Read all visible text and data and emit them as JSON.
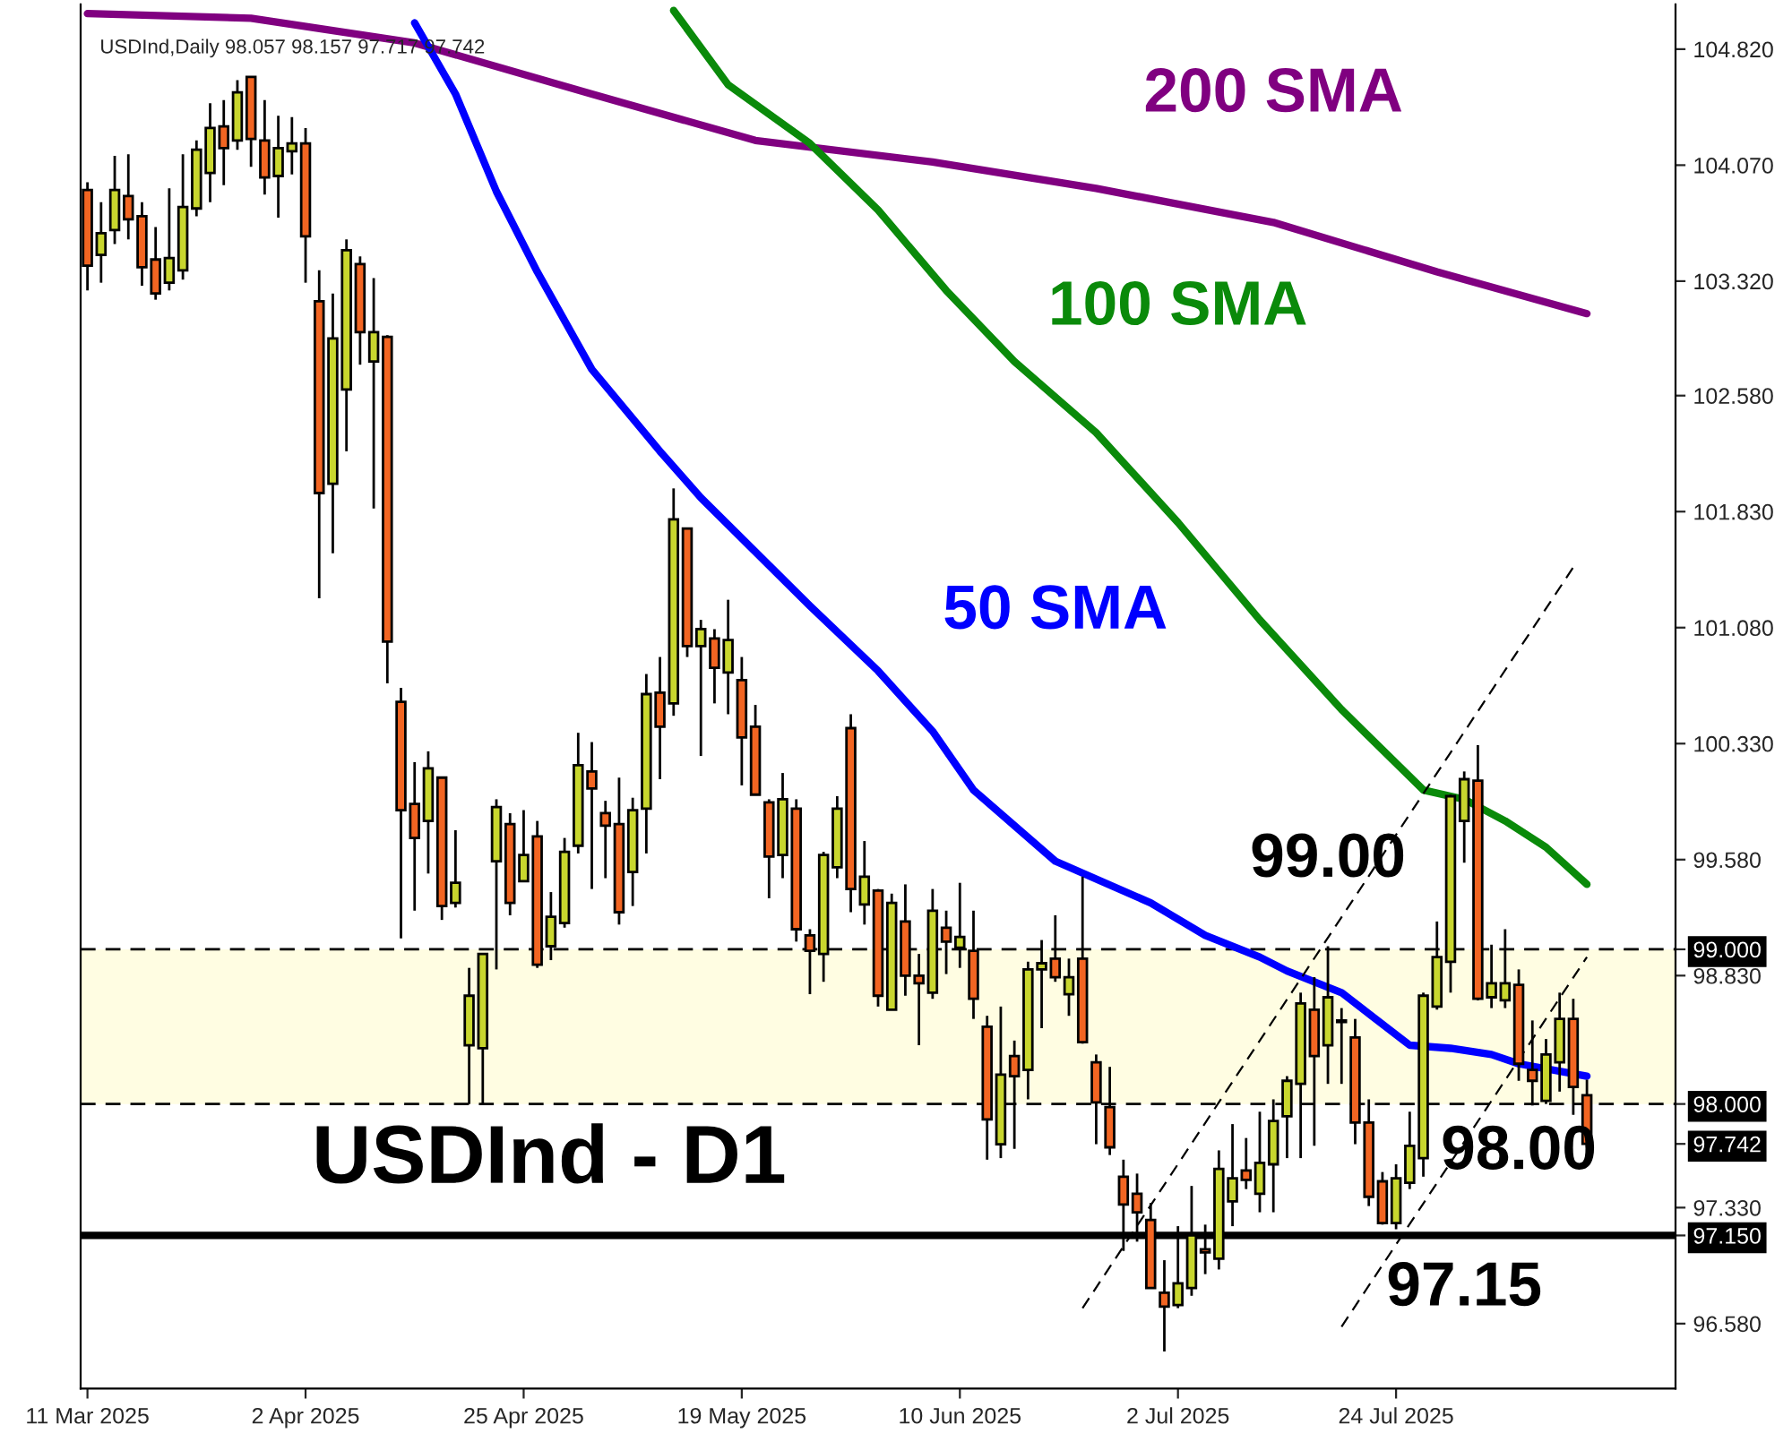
{
  "chart_data": {
    "type": "candlestick",
    "title": "USDInd - D1",
    "annotations": [
      "USDInd,Daily 98.057 98.157 97.717 97.742"
    ],
    "categories": [
      "11 Mar 2025",
      null,
      null,
      null,
      null,
      null,
      null,
      null,
      null,
      null,
      null,
      null,
      null,
      null,
      null,
      null,
      "2 Apr 2025",
      null,
      null,
      null,
      null,
      null,
      null,
      null,
      null,
      null,
      null,
      null,
      null,
      null,
      null,
      null,
      "25 Apr 2025",
      null,
      null,
      null,
      null,
      null,
      null,
      null,
      null,
      null,
      null,
      null,
      null,
      null,
      null,
      null,
      "19 May 2025",
      null,
      null,
      null,
      null,
      null,
      null,
      null,
      null,
      null,
      null,
      null,
      null,
      null,
      null,
      null,
      "10 Jun 2025",
      null,
      null,
      null,
      null,
      null,
      null,
      null,
      null,
      null,
      null,
      null,
      null,
      null,
      null,
      null,
      "2 Jul 2025",
      null,
      null,
      null,
      null,
      null,
      null,
      null,
      null,
      null,
      null,
      null,
      null,
      null,
      null,
      null,
      "24 Jul 2025",
      null,
      null,
      null,
      null,
      null,
      null,
      null,
      null,
      null,
      null,
      null,
      null,
      null,
      null
    ],
    "ohlc": [
      [
        103.91,
        103.96,
        103.26,
        103.42
      ],
      [
        103.49,
        103.83,
        103.31,
        103.63
      ],
      [
        103.65,
        104.13,
        103.56,
        103.91
      ],
      [
        103.87,
        104.14,
        103.59,
        103.72
      ],
      [
        103.74,
        103.83,
        103.29,
        103.41
      ],
      [
        103.46,
        103.67,
        103.2,
        103.24
      ],
      [
        103.31,
        103.92,
        103.26,
        103.47
      ],
      [
        103.39,
        104.14,
        103.33,
        103.8
      ],
      [
        103.79,
        104.23,
        103.74,
        104.17
      ],
      [
        104.02,
        104.47,
        103.83,
        104.31
      ],
      [
        104.32,
        104.49,
        103.94,
        104.18
      ],
      [
        104.23,
        104.62,
        104.17,
        104.54
      ],
      [
        104.64,
        104.64,
        104.06,
        104.24
      ],
      [
        104.23,
        104.49,
        103.88,
        103.99
      ],
      [
        104.0,
        104.39,
        103.73,
        104.18
      ],
      [
        104.16,
        104.38,
        104.01,
        104.21
      ],
      [
        104.21,
        104.31,
        103.31,
        103.61
      ],
      [
        103.19,
        103.39,
        101.27,
        101.95
      ],
      [
        102.01,
        103.24,
        101.56,
        102.95
      ],
      [
        102.62,
        103.59,
        102.22,
        103.52
      ],
      [
        103.43,
        103.48,
        102.78,
        102.99
      ],
      [
        102.8,
        103.34,
        101.85,
        102.99
      ],
      [
        102.96,
        102.97,
        100.72,
        100.99
      ],
      [
        100.6,
        100.69,
        99.07,
        99.9
      ],
      [
        99.94,
        100.21,
        99.25,
        99.72
      ],
      [
        99.83,
        100.28,
        99.49,
        100.17
      ],
      [
        100.11,
        100.11,
        99.19,
        99.28
      ],
      [
        99.3,
        99.77,
        99.27,
        99.43
      ],
      [
        98.38,
        98.88,
        98.0,
        98.7
      ],
      [
        98.36,
        98.97,
        98.0,
        98.97
      ],
      [
        99.57,
        99.97,
        98.87,
        99.92
      ],
      [
        99.81,
        99.88,
        99.22,
        99.3
      ],
      [
        99.44,
        99.9,
        99.44,
        99.61
      ],
      [
        99.73,
        99.83,
        98.88,
        98.9
      ],
      [
        99.02,
        99.37,
        98.93,
        99.21
      ],
      [
        99.17,
        99.72,
        99.14,
        99.63
      ],
      [
        99.67,
        100.4,
        99.62,
        100.19
      ],
      [
        100.15,
        100.34,
        99.39,
        100.04
      ],
      [
        99.88,
        99.96,
        99.46,
        99.8
      ],
      [
        99.81,
        100.11,
        99.16,
        99.24
      ],
      [
        99.5,
        99.98,
        99.28,
        99.9
      ],
      [
        99.91,
        100.78,
        99.62,
        100.65
      ],
      [
        100.66,
        100.89,
        100.1,
        100.44
      ],
      [
        100.59,
        101.98,
        100.51,
        101.78
      ],
      [
        101.72,
        101.72,
        100.89,
        100.96
      ],
      [
        100.96,
        101.13,
        100.25,
        101.07
      ],
      [
        101.01,
        101.07,
        100.59,
        100.82
      ],
      [
        100.79,
        101.26,
        100.52,
        101.0
      ],
      [
        100.74,
        100.89,
        100.06,
        100.37
      ],
      [
        100.44,
        100.58,
        100.0,
        100.0
      ],
      [
        99.95,
        99.97,
        99.33,
        99.6
      ],
      [
        99.61,
        100.14,
        99.46,
        99.97
      ],
      [
        99.91,
        99.97,
        99.05,
        99.13
      ],
      [
        99.09,
        99.13,
        98.71,
        98.99
      ],
      [
        98.97,
        99.63,
        98.79,
        99.61
      ],
      [
        99.53,
        99.99,
        99.46,
        99.91
      ],
      [
        100.43,
        100.52,
        99.24,
        99.39
      ],
      [
        99.29,
        99.7,
        99.16,
        99.47
      ],
      [
        99.38,
        99.39,
        98.63,
        98.7
      ],
      [
        98.61,
        99.36,
        98.61,
        99.3
      ],
      [
        99.18,
        99.42,
        98.7,
        98.83
      ],
      [
        98.83,
        98.97,
        98.38,
        98.78
      ],
      [
        98.72,
        99.39,
        98.68,
        99.25
      ],
      [
        99.14,
        99.25,
        98.84,
        99.05
      ],
      [
        99.01,
        99.43,
        98.88,
        99.08
      ],
      [
        98.99,
        99.25,
        98.55,
        98.68
      ],
      [
        98.5,
        98.57,
        97.64,
        97.9
      ],
      [
        97.74,
        98.63,
        97.65,
        98.19
      ],
      [
        98.31,
        98.41,
        97.71,
        98.18
      ],
      [
        98.22,
        98.92,
        98.03,
        98.87
      ],
      [
        98.87,
        99.06,
        98.49,
        98.91
      ],
      [
        98.94,
        99.22,
        98.79,
        98.82
      ],
      [
        98.71,
        98.94,
        98.57,
        98.82
      ],
      [
        98.94,
        99.47,
        98.39,
        98.4
      ],
      [
        98.27,
        98.32,
        97.74,
        98.01
      ],
      [
        97.98,
        98.24,
        97.67,
        97.72
      ],
      [
        97.53,
        97.64,
        97.05,
        97.35
      ],
      [
        97.42,
        97.55,
        97.11,
        97.3
      ],
      [
        97.25,
        97.36,
        96.81,
        96.81
      ],
      [
        96.78,
        96.99,
        96.4,
        96.69
      ],
      [
        96.7,
        97.21,
        96.68,
        96.84
      ],
      [
        96.81,
        97.47,
        96.76,
        97.15
      ],
      [
        97.06,
        97.22,
        96.9,
        97.04
      ],
      [
        97.0,
        97.7,
        96.93,
        97.58
      ],
      [
        97.37,
        97.87,
        97.21,
        97.52
      ],
      [
        97.57,
        97.78,
        97.45,
        97.51
      ],
      [
        97.42,
        97.95,
        97.3,
        97.62
      ],
      [
        97.61,
        98.03,
        97.3,
        97.89
      ],
      [
        97.92,
        98.18,
        97.65,
        98.15
      ],
      [
        98.13,
        98.72,
        97.65,
        98.65
      ],
      [
        98.61,
        98.82,
        97.73,
        98.31
      ],
      [
        98.38,
        99.02,
        98.13,
        98.69
      ],
      [
        98.53,
        98.62,
        98.13,
        98.54
      ],
      [
        98.43,
        98.55,
        97.74,
        97.88
      ],
      [
        97.88,
        98.03,
        97.34,
        97.4
      ],
      [
        97.5,
        97.56,
        97.22,
        97.23
      ],
      [
        97.23,
        97.61,
        97.19,
        97.52
      ],
      [
        97.49,
        97.95,
        97.45,
        97.73
      ],
      [
        97.65,
        98.72,
        97.53,
        98.7
      ],
      [
        98.63,
        99.18,
        98.61,
        98.95
      ],
      [
        98.92,
        100.0,
        98.72,
        99.99
      ],
      [
        99.83,
        100.15,
        99.56,
        100.1
      ],
      [
        100.09,
        100.32,
        98.67,
        98.68
      ],
      [
        98.69,
        99.03,
        98.62,
        98.78
      ],
      [
        98.67,
        99.13,
        98.62,
        98.78
      ],
      [
        98.77,
        98.87,
        98.15,
        98.26
      ],
      [
        98.22,
        98.54,
        97.99,
        98.15
      ],
      [
        98.02,
        98.42,
        98.0,
        98.32
      ],
      [
        98.27,
        98.72,
        98.08,
        98.55
      ],
      [
        98.55,
        98.68,
        97.93,
        98.11
      ],
      [
        98.057,
        98.157,
        97.717,
        97.742
      ]
    ],
    "colors": [
      "#f26522",
      "#c8d62e",
      "#c8d62e",
      "#f26522",
      "#f26522",
      "#f26522",
      "#c8d62e",
      "#c8d62e",
      "#c8d62e",
      "#c8d62e",
      "#f26522",
      "#c8d62e",
      "#f26522",
      "#f26522",
      "#c8d62e",
      "#c8d62e",
      "#f26522",
      "#f26522",
      "#c8d62e",
      "#c8d62e",
      "#f26522",
      "#c8d62e",
      "#f26522",
      "#f26522",
      "#f26522",
      "#c8d62e",
      "#f26522",
      "#c8d62e",
      "#c8d62e",
      "#c8d62e",
      "#c8d62e",
      "#f26522",
      "#c8d62e",
      "#f26522",
      "#c8d62e",
      "#c8d62e",
      "#c8d62e",
      "#f26522",
      "#f26522",
      "#f26522",
      "#c8d62e",
      "#c8d62e",
      "#f26522",
      "#c8d62e",
      "#f26522",
      "#c8d62e",
      "#f26522",
      "#c8d62e",
      "#f26522",
      "#f26522",
      "#f26522",
      "#c8d62e",
      "#f26522",
      "#f26522",
      "#c8d62e",
      "#c8d62e",
      "#f26522",
      "#c8d62e",
      "#f26522",
      "#c8d62e",
      "#f26522",
      "#f26522",
      "#c8d62e",
      "#f26522",
      "#c8d62e",
      "#f26522",
      "#f26522",
      "#c8d62e",
      "#f26522",
      "#c8d62e",
      "#c8d62e",
      "#f26522",
      "#c8d62e",
      "#f26522",
      "#f26522",
      "#f26522",
      "#f26522",
      "#f26522",
      "#f26522",
      "#f26522",
      "#c8d62e",
      "#c8d62e",
      "#f26522",
      "#c8d62e",
      "#c8d62e",
      "#f26522",
      "#c8d62e",
      "#c8d62e",
      "#c8d62e",
      "#c8d62e",
      "#f26522",
      "#c8d62e",
      "#c8d62e",
      "#f26522",
      "#f26522",
      "#f26522",
      "#c8d62e",
      "#c8d62e",
      "#c8d62e",
      "#c8d62e",
      "#c8d62e",
      "#c8d62e",
      "#f26522",
      "#c8d62e",
      "#c8d62e",
      "#f26522",
      "#f26522",
      "#c8d62e",
      "#c8d62e",
      "#f26522",
      "#f26522"
    ],
    "series": [
      {
        "name": "200 SMA",
        "type": "line",
        "color": "#800080",
        "line_style": "solid",
        "values": [
          105.05,
          null,
          null,
          null,
          null,
          null,
          null,
          null,
          null,
          null,
          null,
          null,
          105.02,
          null,
          null,
          null,
          null,
          null,
          null,
          null,
          null,
          null,
          null,
          null,
          104.86,
          null,
          null,
          null,
          null,
          null,
          null,
          null,
          null,
          null,
          null,
          null,
          null,
          104.53,
          null,
          null,
          null,
          null,
          null,
          null,
          null,
          null,
          null,
          null,
          null,
          104.23,
          null,
          null,
          null,
          null,
          null,
          null,
          null,
          null,
          null,
          null,
          null,
          null,
          104.09,
          null,
          null,
          null,
          null,
          null,
          null,
          null,
          null,
          null,
          null,
          null,
          103.92,
          null,
          null,
          null,
          null,
          null,
          null,
          null,
          null,
          null,
          null,
          null,
          null,
          103.7,
          null,
          null,
          null,
          null,
          null,
          null,
          null,
          null,
          null,
          null,
          null,
          103.38,
          null,
          null,
          null,
          null,
          null,
          null,
          null,
          null,
          null,
          null,
          103.11
        ]
      },
      {
        "name": "100 SMA",
        "type": "line",
        "color": "#0a8a0a",
        "line_style": "solid",
        "values": [
          null,
          null,
          null,
          null,
          null,
          null,
          null,
          null,
          null,
          null,
          null,
          null,
          null,
          null,
          null,
          null,
          null,
          null,
          null,
          null,
          null,
          null,
          null,
          null,
          null,
          null,
          null,
          null,
          null,
          null,
          null,
          null,
          null,
          null,
          null,
          null,
          null,
          null,
          null,
          null,
          null,
          null,
          null,
          105.07,
          null,
          null,
          null,
          104.59,
          null,
          null,
          null,
          null,
          null,
          104.21,
          null,
          null,
          null,
          null,
          103.78,
          null,
          null,
          null,
          null,
          103.26,
          null,
          null,
          null,
          null,
          102.8,
          null,
          null,
          null,
          null,
          null,
          102.34,
          null,
          null,
          null,
          null,
          null,
          101.76,
          null,
          null,
          null,
          null,
          null,
          101.13,
          null,
          null,
          null,
          null,
          null,
          100.55,
          null,
          null,
          null,
          null,
          null,
          100.03,
          null,
          null,
          99.97,
          null,
          null,
          99.83,
          null,
          null,
          99.66,
          null,
          null,
          99.42
        ]
      },
      {
        "name": "50 SMA",
        "type": "line",
        "color": "#0000ff",
        "line_style": "solid",
        "values": [
          null,
          null,
          null,
          null,
          null,
          null,
          null,
          null,
          null,
          null,
          null,
          null,
          null,
          null,
          null,
          null,
          null,
          null,
          null,
          null,
          null,
          null,
          null,
          null,
          104.99,
          null,
          null,
          104.53,
          null,
          null,
          103.9,
          null,
          null,
          103.38,
          null,
          null,
          null,
          102.75,
          null,
          null,
          null,
          null,
          102.22,
          null,
          null,
          101.92,
          null,
          null,
          null,
          null,
          null,
          null,
          null,
          101.22,
          null,
          null,
          null,
          null,
          100.8,
          null,
          null,
          null,
          100.41,
          null,
          null,
          100.03,
          null,
          null,
          null,
          null,
          null,
          99.57,
          null,
          null,
          null,
          null,
          null,
          null,
          99.3,
          null,
          null,
          null,
          99.09,
          null,
          null,
          null,
          98.95,
          null,
          98.86,
          null,
          null,
          null,
          98.72,
          null,
          null,
          null,
          null,
          98.38,
          null,
          null,
          98.36,
          null,
          null,
          98.32,
          null,
          98.26,
          null,
          null,
          null,
          null,
          98.18
        ]
      },
      {
        "type": "line",
        "color": "#000000",
        "line_style": "dashed",
        "values": [
          null,
          null,
          null,
          null,
          null,
          null,
          null,
          null,
          null,
          null,
          null,
          null,
          null,
          null,
          null,
          null,
          null,
          null,
          null,
          null,
          null,
          null,
          null,
          null,
          null,
          null,
          null,
          null,
          null,
          null,
          null,
          null,
          null,
          null,
          null,
          null,
          null,
          null,
          null,
          null,
          null,
          null,
          null,
          null,
          null,
          null,
          null,
          null,
          null,
          null,
          null,
          null,
          null,
          null,
          null,
          null,
          null,
          null,
          null,
          null,
          null,
          null,
          null,
          null,
          null,
          null,
          null,
          null,
          null,
          null,
          null,
          null,
          null,
          96.68,
          null,
          null,
          null,
          null,
          null,
          null,
          null,
          null,
          null,
          null,
          null,
          null,
          null,
          null,
          null,
          null,
          null,
          null,
          null,
          null,
          null,
          null,
          null,
          null,
          null,
          null,
          null,
          null,
          null,
          null,
          null,
          null,
          null,
          null,
          null,
          101.47,
          null
        ]
      },
      {
        "type": "line",
        "color": "#000000",
        "line_style": "dashed",
        "values": [
          null,
          null,
          null,
          null,
          null,
          null,
          null,
          null,
          null,
          null,
          null,
          null,
          null,
          null,
          null,
          null,
          null,
          null,
          null,
          null,
          null,
          null,
          null,
          null,
          null,
          null,
          null,
          null,
          null,
          null,
          null,
          null,
          null,
          null,
          null,
          null,
          null,
          null,
          null,
          null,
          null,
          null,
          null,
          null,
          null,
          null,
          null,
          null,
          null,
          null,
          null,
          null,
          null,
          null,
          null,
          null,
          null,
          null,
          null,
          null,
          null,
          null,
          null,
          null,
          null,
          null,
          null,
          null,
          null,
          null,
          null,
          null,
          null,
          null,
          null,
          null,
          null,
          null,
          null,
          null,
          null,
          null,
          null,
          null,
          null,
          null,
          null,
          null,
          null,
          null,
          null,
          null,
          96.56,
          null,
          null,
          null,
          null,
          null,
          null,
          null,
          null,
          null,
          null,
          null,
          null,
          null,
          null,
          null,
          null,
          null,
          98.95
        ]
      }
    ],
    "ref_lines": [
      {
        "axis": "y",
        "value": 99.0,
        "label": "99.00",
        "line_style": "dashed",
        "color": "#000000"
      },
      {
        "axis": "y",
        "value": 98.0,
        "label": "98.00",
        "line_style": "dashed",
        "color": "#000000"
      },
      {
        "axis": "y",
        "value": 97.15,
        "label": "97.15",
        "line_style": "solid",
        "color": "#000000"
      }
    ],
    "bands": [
      {
        "axis": "y",
        "from": 98.0,
        "to": 99.0,
        "color": "#fffde2"
      }
    ],
    "ylim": [
      96.16,
      105.11
    ],
    "yticks": [
      {
        "value": 104.82,
        "label": "104.820"
      },
      {
        "value": 104.07,
        "label": "104.070"
      },
      {
        "value": 103.32,
        "label": "103.320"
      },
      {
        "value": 102.58,
        "label": "102.580"
      },
      {
        "value": 101.83,
        "label": "101.830"
      },
      {
        "value": 101.08,
        "label": "101.080"
      },
      {
        "value": 100.33,
        "label": "100.330"
      },
      {
        "value": 99.58,
        "label": "99.580"
      },
      {
        "value": 98.83,
        "label": "98.830"
      },
      {
        "value": 97.33,
        "label": "97.330"
      },
      {
        "value": 96.58,
        "label": "96.580"
      },
      {
        "value": 99.0,
        "label": "99.000"
      },
      {
        "value": 98.0,
        "label": "98.000"
      },
      {
        "value": 97.742,
        "label": "97.742"
      },
      {
        "value": 97.15,
        "label": "97.150"
      }
    ]
  }
}
